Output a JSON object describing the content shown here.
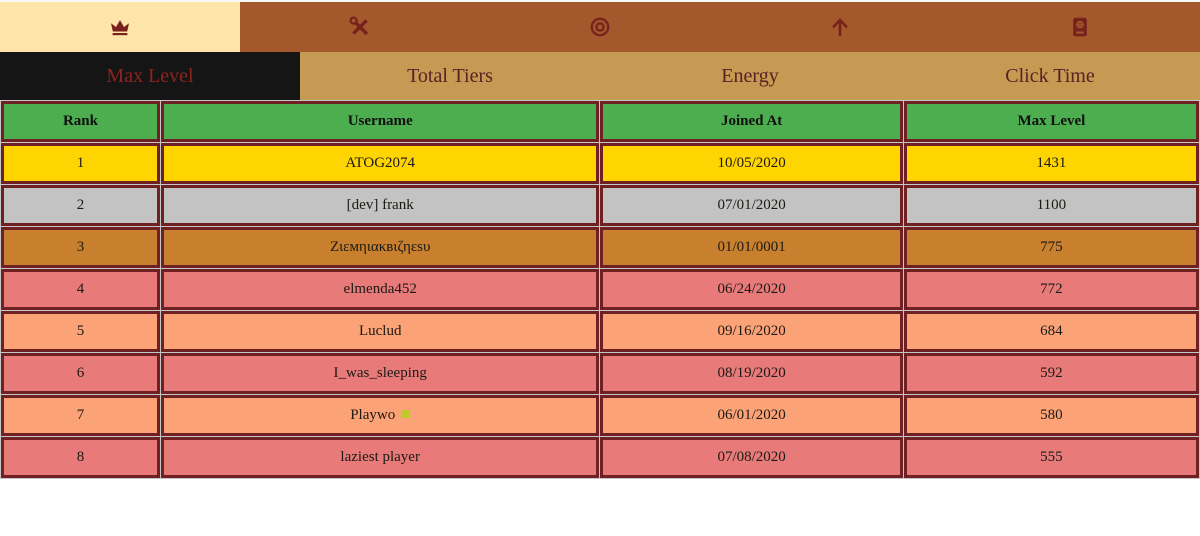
{
  "theme": {
    "nav_bg": "#a3592b",
    "nav_active_bg": "#ffe5a9",
    "icon_color": "#78211d",
    "tabs_bg": "#c59a52",
    "tab_active_bg": "#151515",
    "tab_active_text": "#8b2420",
    "tab_text": "#5a2024",
    "border_maroon": "#6e2023",
    "header_green": "#4cae4f",
    "gap_gray": "#c6c6c6",
    "cell_text": "#1c1a14"
  },
  "nav": {
    "items": [
      {
        "icon": "crown-icon",
        "active": true
      },
      {
        "icon": "screwdriver-wrench-icon",
        "active": false
      },
      {
        "icon": "bullseye-icon",
        "active": false
      },
      {
        "icon": "arrow-up-icon",
        "active": false
      },
      {
        "icon": "passport-icon",
        "active": false
      }
    ]
  },
  "tabs": {
    "items": [
      {
        "label": "Max Level",
        "active": true
      },
      {
        "label": "Total Tiers",
        "active": false
      },
      {
        "label": "Energy",
        "active": false
      },
      {
        "label": "Click Time",
        "active": false
      }
    ]
  },
  "table": {
    "header": {
      "columns": [
        "Rank",
        "Username",
        "Joined At",
        "Max Level"
      ]
    },
    "rows": [
      {
        "rank": "1",
        "username": "ATOG2074",
        "joined_at": "10/05/2020",
        "max_level": "1431",
        "background": "#fed500"
      },
      {
        "rank": "2",
        "username": "[dev] frank",
        "joined_at": "07/01/2020",
        "max_level": "1100",
        "background": "#c3c3c3"
      },
      {
        "rank": "3",
        "username": "Ζιεмηιακвιζηεsυ",
        "joined_at": "01/01/0001",
        "max_level": "775",
        "background": "#c8802f"
      },
      {
        "rank": "4",
        "username": "elmenda452",
        "joined_at": "06/24/2020",
        "max_level": "772",
        "background": "#e87a7a"
      },
      {
        "rank": "5",
        "username": "Luclud",
        "joined_at": "09/16/2020",
        "max_level": "684",
        "background": "#fba377"
      },
      {
        "rank": "6",
        "username": "I_was_sleeping",
        "joined_at": "08/19/2020",
        "max_level": "592",
        "background": "#e87a7a"
      },
      {
        "rank": "7",
        "username": "Playwo",
        "badge_color": "#bfca28",
        "joined_at": "06/01/2020",
        "max_level": "580",
        "background": "#fba377"
      },
      {
        "rank": "8",
        "username": "laziest player",
        "joined_at": "07/08/2020",
        "max_level": "555",
        "background": "#e87a7a"
      }
    ]
  }
}
